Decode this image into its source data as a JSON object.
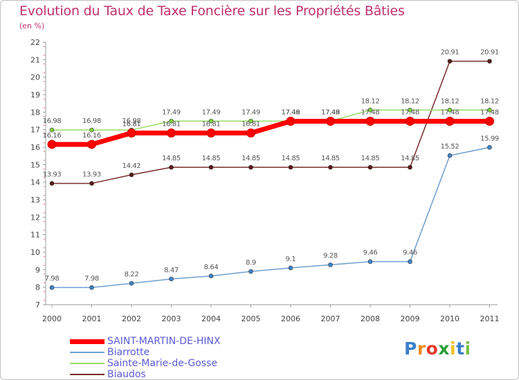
{
  "page": {
    "title": "Evolution du Taux de Taxe Foncière sur les Propriétés Bâties",
    "subtitle": "(en %)"
  },
  "chart_data": {
    "type": "line",
    "title": "Evolution du Taux de Taxe Foncière sur les Propriétés Bâties",
    "ylabel": "(en %)",
    "xlabel": "",
    "x": [
      "2000",
      "2001",
      "2002",
      "2003",
      "2004",
      "2005",
      "2006",
      "2007",
      "2008",
      "2009",
      "2010",
      "2011"
    ],
    "ylim": [
      7,
      22
    ],
    "yticks": [
      "7",
      "8",
      "9",
      "10",
      "11",
      "12",
      "13",
      "14",
      "15",
      "16",
      "17",
      "18",
      "19",
      "20",
      "21",
      "22"
    ],
    "grid": false,
    "legend_position": "bottom-left",
    "series": [
      {
        "name": "SAINT-MARTIN-DE-HINX",
        "color": "#ff0000",
        "marker": "#ff0000",
        "values": [
          16.16,
          16.16,
          16.81,
          16.81,
          16.81,
          16.81,
          17.48,
          17.48,
          17.48,
          17.48,
          17.48,
          17.48
        ],
        "labels": [
          "16.16",
          "16.16",
          "16.81",
          "16.81",
          "16.81",
          "16.81",
          "17.48",
          "17.48",
          "17.48",
          "17.48",
          "17.48",
          "17.48"
        ]
      },
      {
        "name": "Biarrotte",
        "color": "#6e9fd0",
        "marker": "#3f86c9",
        "values": [
          7.98,
          7.98,
          8.22,
          8.47,
          8.64,
          8.9,
          9.1,
          9.28,
          9.46,
          9.46,
          15.52,
          15.99
        ],
        "labels": [
          "7.98",
          "7.98",
          "8.22",
          "8.47",
          "8.64",
          "8.9",
          "9.1",
          "9.28",
          "9.46",
          "9.46",
          "15.52",
          "15.99"
        ]
      },
      {
        "name": "Sainte-Marie-de-Gosse",
        "color": "#99dd66",
        "marker": "#7ed13c",
        "values": [
          16.98,
          16.98,
          16.98,
          17.49,
          17.49,
          17.49,
          17.49,
          17.49,
          18.12,
          18.12,
          18.12,
          18.12
        ],
        "labels": [
          "16.98",
          "16.98",
          "16.98",
          "17.49",
          "17.49",
          "17.49",
          "17.49",
          "17.49",
          "18.12",
          "18.12",
          "18.12",
          "18.12"
        ]
      },
      {
        "name": "Biaudos",
        "color": "#7a2a2a",
        "marker": "#5a1a1a",
        "values": [
          13.93,
          13.93,
          14.42,
          14.85,
          14.85,
          14.85,
          14.85,
          14.85,
          14.85,
          14.85,
          20.91,
          20.91
        ],
        "labels": [
          "13.93",
          "13.93",
          "14.42",
          "14.85",
          "14.85",
          "14.85",
          "14.85",
          "14.85",
          "14.85",
          "14.85",
          "20.91",
          "20.91"
        ]
      }
    ]
  },
  "legend": [
    {
      "label": "SAINT-MARTIN-DE-HINX",
      "color": "#ff0000"
    },
    {
      "label": "Biarrotte",
      "color": "#6e9fd0"
    },
    {
      "label": "Sainte-Marie-de-Gosse",
      "color": "#99dd66"
    },
    {
      "label": "Biaudos",
      "color": "#7a2a2a"
    }
  ],
  "logo": {
    "letters": [
      "P",
      "r",
      "o",
      "x",
      "i",
      "t",
      "i"
    ],
    "colors": [
      "#3a7fc8",
      "#f08a1c",
      "#e23a2a",
      "#2a9d3a",
      "#f0c020",
      "#3a7fc8",
      "#7ac043"
    ]
  }
}
